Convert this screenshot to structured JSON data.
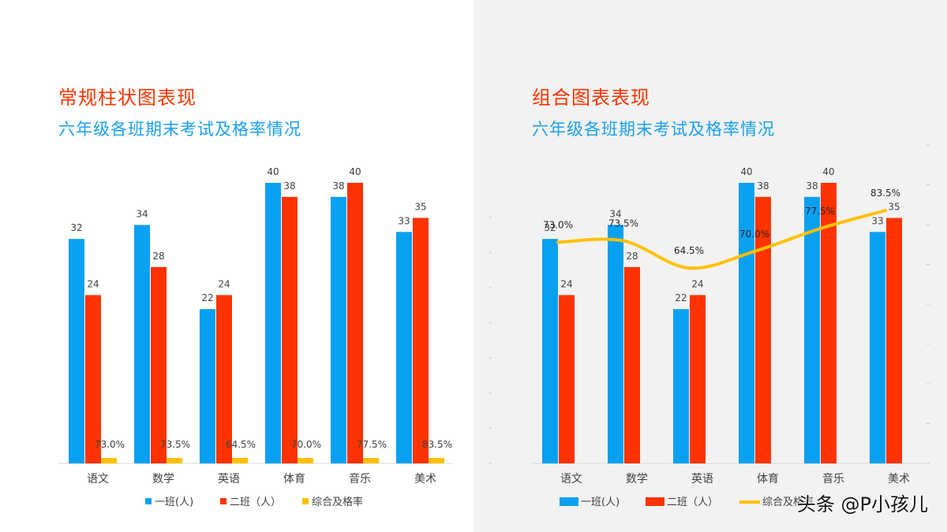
{
  "left": {
    "heading": "常规柱状图表现",
    "subheading": "六年级各班期末考试及格率情况"
  },
  "right": {
    "heading": "组合图表表现",
    "subheading": "六年级各班期末考试及格率情况"
  },
  "watermark": "头条 @P小孩儿",
  "colors": {
    "class1": "#0aa0f2",
    "class2": "#ff3300",
    "rate": "#ffc000",
    "heading": "#ff3300",
    "subheading": "#1aa0f0"
  },
  "chart_data": [
    {
      "type": "bar",
      "categories": [
        "语文",
        "数学",
        "英语",
        "体育",
        "音乐",
        "美术"
      ],
      "series": [
        {
          "name": "一班(人)",
          "values": [
            32,
            34,
            22,
            40,
            38,
            33
          ],
          "labels": [
            "32",
            "34",
            "22",
            "40",
            "38",
            "33"
          ]
        },
        {
          "name": "二班（人）",
          "values": [
            24,
            28,
            24,
            38,
            40,
            35
          ],
          "labels": [
            "24",
            "28",
            "24",
            "38",
            "40",
            "35"
          ]
        },
        {
          "name": "综合及格率",
          "values": [
            0.73,
            0.735,
            0.645,
            0.7,
            0.775,
            0.835
          ],
          "labels": [
            "73.0%",
            "73.5%",
            "64.5%",
            "70.0%",
            "77.5%",
            "83.5%"
          ]
        }
      ],
      "ylim": [
        0,
        40
      ],
      "grid": false,
      "legend": "bottom"
    },
    {
      "type": "bar",
      "categories": [
        "语文",
        "数学",
        "英语",
        "体育",
        "音乐",
        "美术"
      ],
      "series": [
        {
          "name": "一班(人)",
          "type": "bar",
          "values": [
            32,
            34,
            22,
            40,
            38,
            33
          ],
          "labels": [
            "32",
            "34",
            "22",
            "40",
            "38",
            "33"
          ]
        },
        {
          "name": "二班（人）",
          "type": "bar",
          "values": [
            24,
            28,
            24,
            38,
            40,
            35
          ],
          "labels": [
            "24",
            "28",
            "24",
            "38",
            "40",
            "35"
          ]
        },
        {
          "name": "综合及格率",
          "type": "line",
          "axis": "secondary",
          "values": [
            0.73,
            0.735,
            0.645,
            0.7,
            0.775,
            0.835
          ],
          "labels": [
            "73.0%",
            "73.5%",
            "64.5%",
            "70.0%",
            "77.5%",
            "83.5%"
          ]
        }
      ],
      "ylim": [
        0,
        40
      ],
      "secondary_ylim": [
        0,
        1.15
      ],
      "grid": false,
      "legend": "bottom"
    }
  ]
}
